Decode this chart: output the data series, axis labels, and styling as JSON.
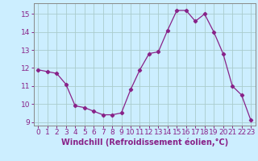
{
  "x": [
    0,
    1,
    2,
    3,
    4,
    5,
    6,
    7,
    8,
    9,
    10,
    11,
    12,
    13,
    14,
    15,
    16,
    17,
    18,
    19,
    20,
    21,
    22,
    23
  ],
  "y": [
    11.9,
    11.8,
    11.7,
    11.1,
    9.9,
    9.8,
    9.6,
    9.4,
    9.4,
    9.5,
    10.8,
    11.9,
    12.8,
    12.9,
    14.1,
    15.2,
    15.2,
    14.6,
    15.0,
    14.0,
    12.8,
    11.0,
    10.5,
    9.1
  ],
  "line_color": "#882288",
  "marker": "D",
  "marker_size": 2.2,
  "bg_color": "#cceeff",
  "grid_color": "#aacccc",
  "xlabel": "Windchill (Refroidissement éolien,°C)",
  "xlabel_fontsize": 7,
  "tick_fontsize": 6.5,
  "ylim": [
    8.8,
    15.6
  ],
  "yticks": [
    9,
    10,
    11,
    12,
    13,
    14,
    15
  ],
  "xlim": [
    -0.5,
    23.5
  ],
  "xticks": [
    0,
    1,
    2,
    3,
    4,
    5,
    6,
    7,
    8,
    9,
    10,
    11,
    12,
    13,
    14,
    15,
    16,
    17,
    18,
    19,
    20,
    21,
    22,
    23
  ]
}
